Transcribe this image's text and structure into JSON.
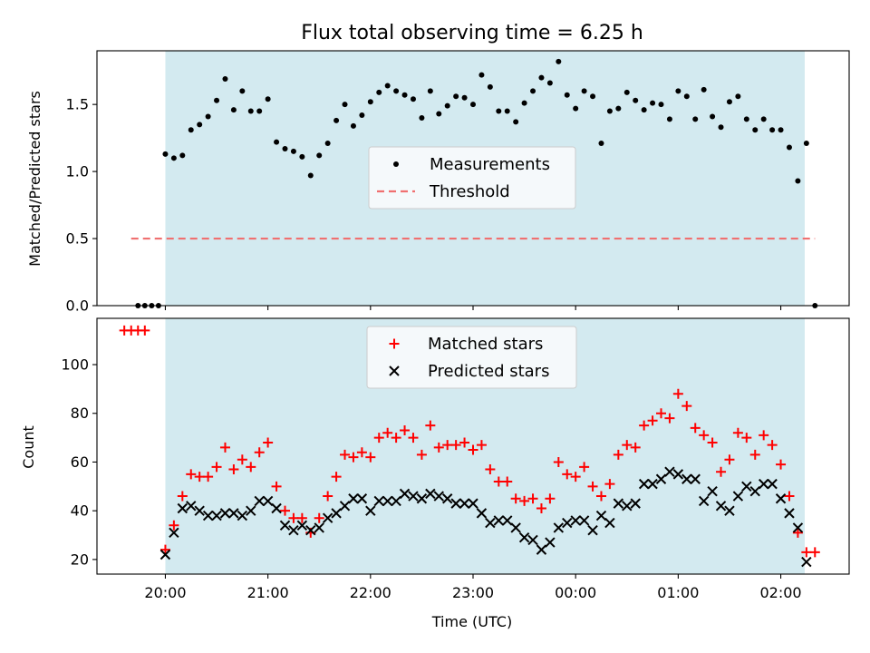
{
  "chart_data": [
    {
      "type": "scatter",
      "title": "Flux total observing time = 6.25 h",
      "xlabel": "",
      "ylabel": "Matched/Predicted stars",
      "ylim": [
        0,
        1.9
      ],
      "yticks": [
        "0.0",
        "0.5",
        "1.0",
        "1.5"
      ],
      "xlim": [
        "19:20",
        "02:40"
      ],
      "x_tick_positions": [
        "20:00",
        "21:00",
        "22:00",
        "23:00",
        "00:00",
        "01:00",
        "02:00"
      ],
      "observing_window": {
        "start": "20:00",
        "end": "02:14",
        "color": "#d3eaf0"
      },
      "legend_location": "center",
      "series": [
        {
          "name": "Measurements",
          "marker": "dot",
          "color": "#000000",
          "points": [
            [
              "19:44",
              0.0
            ],
            [
              "19:48",
              0.0
            ],
            [
              "19:52",
              0.0
            ],
            [
              "19:56",
              0.0
            ],
            [
              "20:00",
              1.13
            ],
            [
              "20:05",
              1.1
            ],
            [
              "20:10",
              1.12
            ],
            [
              "20:15",
              1.31
            ],
            [
              "20:20",
              1.35
            ],
            [
              "20:25",
              1.41
            ],
            [
              "20:30",
              1.53
            ],
            [
              "20:35",
              1.69
            ],
            [
              "20:40",
              1.46
            ],
            [
              "20:45",
              1.6
            ],
            [
              "20:50",
              1.45
            ],
            [
              "20:55",
              1.45
            ],
            [
              "21:00",
              1.54
            ],
            [
              "21:05",
              1.22
            ],
            [
              "21:10",
              1.17
            ],
            [
              "21:15",
              1.15
            ],
            [
              "21:20",
              1.11
            ],
            [
              "21:25",
              0.97
            ],
            [
              "21:30",
              1.12
            ],
            [
              "21:35",
              1.21
            ],
            [
              "21:40",
              1.38
            ],
            [
              "21:45",
              1.5
            ],
            [
              "21:50",
              1.34
            ],
            [
              "21:55",
              1.42
            ],
            [
              "22:00",
              1.52
            ],
            [
              "22:05",
              1.59
            ],
            [
              "22:10",
              1.64
            ],
            [
              "22:15",
              1.6
            ],
            [
              "22:20",
              1.57
            ],
            [
              "22:25",
              1.54
            ],
            [
              "22:30",
              1.4
            ],
            [
              "22:35",
              1.6
            ],
            [
              "22:40",
              1.43
            ],
            [
              "22:45",
              1.49
            ],
            [
              "22:50",
              1.56
            ],
            [
              "22:55",
              1.55
            ],
            [
              "23:00",
              1.5
            ],
            [
              "23:05",
              1.72
            ],
            [
              "23:10",
              1.63
            ],
            [
              "23:15",
              1.45
            ],
            [
              "23:20",
              1.45
            ],
            [
              "23:25",
              1.37
            ],
            [
              "23:30",
              1.51
            ],
            [
              "23:35",
              1.6
            ],
            [
              "23:40",
              1.7
            ],
            [
              "23:45",
              1.66
            ],
            [
              "23:50",
              1.82
            ],
            [
              "23:55",
              1.57
            ],
            [
              "00:00",
              1.47
            ],
            [
              "00:05",
              1.6
            ],
            [
              "00:10",
              1.56
            ],
            [
              "00:15",
              1.21
            ],
            [
              "00:20",
              1.45
            ],
            [
              "00:25",
              1.47
            ],
            [
              "00:30",
              1.59
            ],
            [
              "00:35",
              1.53
            ],
            [
              "00:40",
              1.46
            ],
            [
              "00:45",
              1.51
            ],
            [
              "00:50",
              1.5
            ],
            [
              "00:55",
              1.39
            ],
            [
              "01:00",
              1.6
            ],
            [
              "01:05",
              1.56
            ],
            [
              "01:10",
              1.39
            ],
            [
              "01:15",
              1.61
            ],
            [
              "01:20",
              1.41
            ],
            [
              "01:25",
              1.33
            ],
            [
              "01:30",
              1.52
            ],
            [
              "01:35",
              1.56
            ],
            [
              "01:40",
              1.39
            ],
            [
              "01:45",
              1.31
            ],
            [
              "01:50",
              1.39
            ],
            [
              "01:55",
              1.31
            ],
            [
              "02:00",
              1.31
            ],
            [
              "02:05",
              1.18
            ],
            [
              "02:10",
              0.93
            ],
            [
              "02:15",
              1.21
            ],
            [
              "02:20",
              0.0
            ]
          ]
        },
        {
          "name": "Threshold",
          "line": "dashed",
          "color": "#f07070",
          "points": [
            [
              "19:40",
              0.5
            ],
            [
              "02:20",
              0.5
            ]
          ]
        }
      ]
    },
    {
      "type": "scatter",
      "title": "",
      "xlabel": "Time (UTC)",
      "ylabel": "Count",
      "ylim": [
        14,
        119
      ],
      "yticks": [
        "20",
        "40",
        "60",
        "80",
        "100"
      ],
      "xlim": [
        "19:20",
        "02:40"
      ],
      "x_tick_labels": [
        "20:00",
        "21:00",
        "22:00",
        "23:00",
        "00:00",
        "01:00",
        "02:00"
      ],
      "observing_window": {
        "start": "20:00",
        "end": "02:14",
        "color": "#d3eaf0"
      },
      "legend_location": "upper center",
      "series": [
        {
          "name": "Matched stars",
          "marker": "plus",
          "color": "#ff0000",
          "points": [
            [
              "19:36",
              114
            ],
            [
              "19:40",
              114
            ],
            [
              "19:44",
              114
            ],
            [
              "19:48",
              114
            ],
            [
              "20:00",
              24
            ],
            [
              "20:05",
              34
            ],
            [
              "20:10",
              46
            ],
            [
              "20:15",
              55
            ],
            [
              "20:20",
              54
            ],
            [
              "20:25",
              54
            ],
            [
              "20:30",
              58
            ],
            [
              "20:35",
              66
            ],
            [
              "20:40",
              57
            ],
            [
              "20:45",
              61
            ],
            [
              "20:50",
              58
            ],
            [
              "20:55",
              64
            ],
            [
              "21:00",
              68
            ],
            [
              "21:05",
              50
            ],
            [
              "21:10",
              40
            ],
            [
              "21:15",
              37
            ],
            [
              "21:20",
              37
            ],
            [
              "21:25",
              31
            ],
            [
              "21:30",
              37
            ],
            [
              "21:35",
              46
            ],
            [
              "21:40",
              54
            ],
            [
              "21:45",
              63
            ],
            [
              "21:50",
              62
            ],
            [
              "21:55",
              64
            ],
            [
              "22:00",
              62
            ],
            [
              "22:05",
              70
            ],
            [
              "22:10",
              72
            ],
            [
              "22:15",
              70
            ],
            [
              "22:20",
              73
            ],
            [
              "22:25",
              70
            ],
            [
              "22:30",
              63
            ],
            [
              "22:35",
              75
            ],
            [
              "22:40",
              66
            ],
            [
              "22:45",
              67
            ],
            [
              "22:50",
              67
            ],
            [
              "22:55",
              68
            ],
            [
              "23:00",
              65
            ],
            [
              "23:05",
              67
            ],
            [
              "23:10",
              57
            ],
            [
              "23:15",
              52
            ],
            [
              "23:20",
              52
            ],
            [
              "23:25",
              45
            ],
            [
              "23:30",
              44
            ],
            [
              "23:35",
              45
            ],
            [
              "23:40",
              41
            ],
            [
              "23:45",
              45
            ],
            [
              "23:50",
              60
            ],
            [
              "23:55",
              55
            ],
            [
              "00:00",
              54
            ],
            [
              "00:05",
              58
            ],
            [
              "00:10",
              50
            ],
            [
              "00:15",
              46
            ],
            [
              "00:20",
              51
            ],
            [
              "00:25",
              63
            ],
            [
              "00:30",
              67
            ],
            [
              "00:35",
              66
            ],
            [
              "00:40",
              75
            ],
            [
              "00:45",
              77
            ],
            [
              "00:50",
              80
            ],
            [
              "00:55",
              78
            ],
            [
              "01:00",
              88
            ],
            [
              "01:05",
              83
            ],
            [
              "01:10",
              74
            ],
            [
              "01:15",
              71
            ],
            [
              "01:20",
              68
            ],
            [
              "01:25",
              56
            ],
            [
              "01:30",
              61
            ],
            [
              "01:35",
              72
            ],
            [
              "01:40",
              70
            ],
            [
              "01:45",
              63
            ],
            [
              "01:50",
              71
            ],
            [
              "01:55",
              67
            ],
            [
              "02:00",
              59
            ],
            [
              "02:05",
              46
            ],
            [
              "02:10",
              31
            ],
            [
              "02:15",
              23
            ],
            [
              "02:20",
              23
            ]
          ]
        },
        {
          "name": "Predicted stars",
          "marker": "x",
          "color": "#000000",
          "points": [
            [
              "20:00",
              22
            ],
            [
              "20:05",
              31
            ],
            [
              "20:10",
              41
            ],
            [
              "20:15",
              42
            ],
            [
              "20:20",
              40
            ],
            [
              "20:25",
              38
            ],
            [
              "20:30",
              38
            ],
            [
              "20:35",
              39
            ],
            [
              "20:40",
              39
            ],
            [
              "20:45",
              38
            ],
            [
              "20:50",
              40
            ],
            [
              "20:55",
              44
            ],
            [
              "21:00",
              44
            ],
            [
              "21:05",
              41
            ],
            [
              "21:10",
              34
            ],
            [
              "21:15",
              32
            ],
            [
              "21:20",
              34
            ],
            [
              "21:25",
              32
            ],
            [
              "21:30",
              33
            ],
            [
              "21:35",
              37
            ],
            [
              "21:40",
              39
            ],
            [
              "21:45",
              42
            ],
            [
              "21:50",
              45
            ],
            [
              "21:55",
              45
            ],
            [
              "22:00",
              40
            ],
            [
              "22:05",
              44
            ],
            [
              "22:10",
              44
            ],
            [
              "22:15",
              44
            ],
            [
              "22:20",
              47
            ],
            [
              "22:25",
              46
            ],
            [
              "22:30",
              45
            ],
            [
              "22:35",
              47
            ],
            [
              "22:40",
              46
            ],
            [
              "22:45",
              45
            ],
            [
              "22:50",
              43
            ],
            [
              "22:55",
              43
            ],
            [
              "23:00",
              43
            ],
            [
              "23:05",
              39
            ],
            [
              "23:10",
              35
            ],
            [
              "23:15",
              36
            ],
            [
              "23:20",
              36
            ],
            [
              "23:25",
              33
            ],
            [
              "23:30",
              29
            ],
            [
              "23:35",
              28
            ],
            [
              "23:40",
              24
            ],
            [
              "23:45",
              27
            ],
            [
              "23:50",
              33
            ],
            [
              "23:55",
              35
            ],
            [
              "00:00",
              36
            ],
            [
              "00:05",
              36
            ],
            [
              "00:10",
              32
            ],
            [
              "00:15",
              38
            ],
            [
              "00:20",
              35
            ],
            [
              "00:25",
              43
            ],
            [
              "00:30",
              42
            ],
            [
              "00:35",
              43
            ],
            [
              "00:40",
              51
            ],
            [
              "00:45",
              51
            ],
            [
              "00:50",
              53
            ],
            [
              "00:55",
              56
            ],
            [
              "01:00",
              55
            ],
            [
              "01:05",
              53
            ],
            [
              "01:10",
              53
            ],
            [
              "01:15",
              44
            ],
            [
              "01:20",
              48
            ],
            [
              "01:25",
              42
            ],
            [
              "01:30",
              40
            ],
            [
              "01:35",
              46
            ],
            [
              "01:40",
              50
            ],
            [
              "01:45",
              48
            ],
            [
              "01:50",
              51
            ],
            [
              "01:55",
              51
            ],
            [
              "02:00",
              45
            ],
            [
              "02:05",
              39
            ],
            [
              "02:10",
              33
            ],
            [
              "02:15",
              19
            ]
          ]
        }
      ]
    }
  ]
}
